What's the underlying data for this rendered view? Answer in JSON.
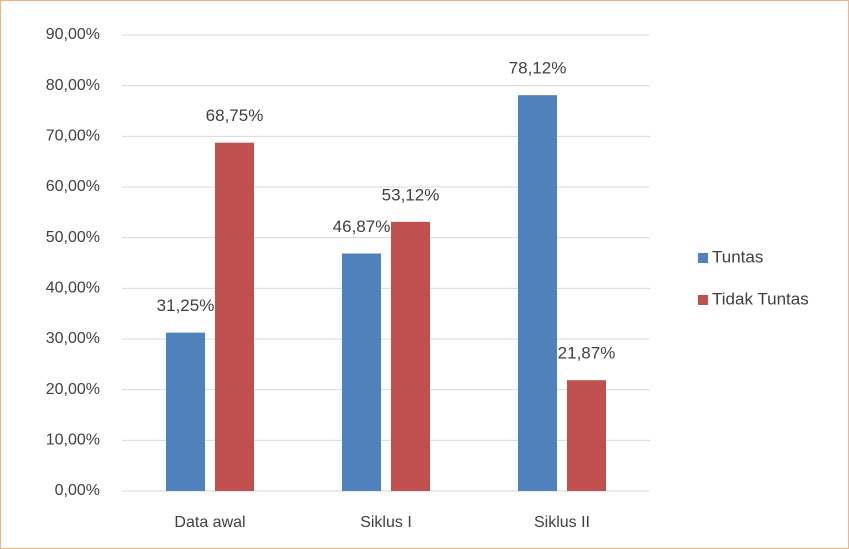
{
  "chart_data": {
    "type": "bar",
    "categories": [
      "Data awal",
      "Siklus I",
      "Siklus II"
    ],
    "series": [
      {
        "name": "Tuntas",
        "color": "#4f81bd",
        "values": [
          31.25,
          46.87,
          78.12
        ],
        "value_labels": [
          "31,25%",
          "46,87%",
          "78,12%"
        ]
      },
      {
        "name": "Tidak Tuntas",
        "color": "#c0504d",
        "values": [
          68.75,
          53.12,
          21.87
        ],
        "value_labels": [
          "68,75%",
          "53,12%",
          "21,87%"
        ]
      }
    ],
    "ylim": [
      0,
      90
    ],
    "yticks": [
      {
        "value": 0,
        "label": "0,00%"
      },
      {
        "value": 10,
        "label": "10,00%"
      },
      {
        "value": 20,
        "label": "20,00%"
      },
      {
        "value": 30,
        "label": "30,00%"
      },
      {
        "value": 40,
        "label": "40,00%"
      },
      {
        "value": 50,
        "label": "50,00%"
      },
      {
        "value": 60,
        "label": "60,00%"
      },
      {
        "value": 70,
        "label": "70,00%"
      },
      {
        "value": 80,
        "label": "80,00%"
      },
      {
        "value": 90,
        "label": "90,00%"
      }
    ],
    "grid": true,
    "legend": "right"
  }
}
